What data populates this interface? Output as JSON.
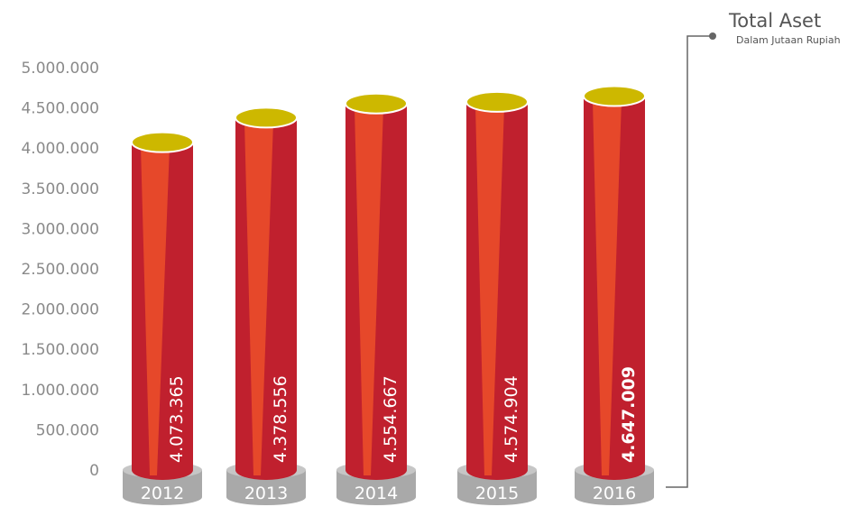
{
  "legend": {
    "title": "Total Aset",
    "subtitle": "Dalam Jutaan Rupiah"
  },
  "colors": {
    "bar_dark": "#c0202e",
    "bar_light": "#e6482a",
    "bar_top": "#cdb800",
    "base": "#a9a9a9",
    "axis_text": "#8a8a8a",
    "connector": "#666666"
  },
  "chart_data": {
    "type": "bar",
    "ylim": [
      0,
      5000000
    ],
    "yticks": [
      0,
      500000,
      1000000,
      1500000,
      2000000,
      2500000,
      3000000,
      3500000,
      4000000,
      4500000,
      5000000
    ],
    "ytick_labels": [
      "0",
      "500.000",
      "1.000.000",
      "1.500.000",
      "2.000.000",
      "2.500.000",
      "3.000.000",
      "3.500.000",
      "4.000.000",
      "4.500.000",
      "5.000.000"
    ],
    "categories": [
      "2012",
      "2013",
      "2014",
      "2015",
      "2016"
    ],
    "values": [
      4073365,
      4378556,
      4554667,
      4574904,
      4647009
    ],
    "value_labels": [
      "4.073.365",
      "4.378.556",
      "4.554.667",
      "4.574.904",
      "4.647.009"
    ],
    "highlight_index": 4,
    "grid": false
  }
}
